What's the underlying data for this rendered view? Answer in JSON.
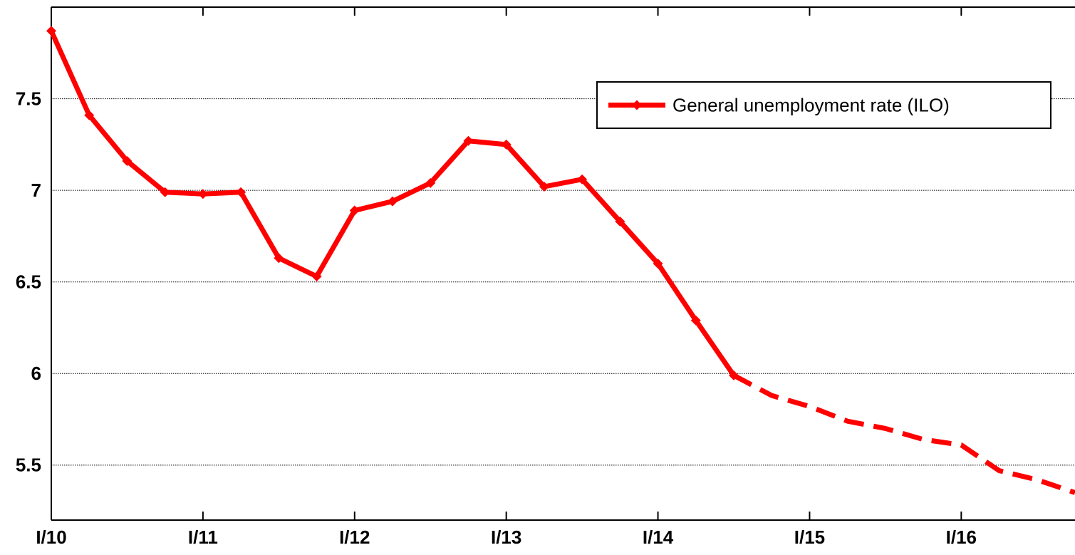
{
  "chart_data": {
    "type": "line",
    "categories": [
      "I/10",
      null,
      null,
      null,
      "I/11",
      null,
      null,
      null,
      "I/12",
      null,
      null,
      null,
      "I/13",
      null,
      null,
      null,
      "I/14",
      null,
      null,
      null,
      "I/15",
      null,
      null,
      null,
      "I/16",
      null,
      null,
      null
    ],
    "series": [
      {
        "name": "General unemployment rate (ILO)",
        "color": "#ff0000",
        "marker": "diamond",
        "dashed": false,
        "values": [
          7.87,
          7.41,
          7.16,
          6.99,
          6.98,
          6.99,
          6.63,
          6.53,
          6.89,
          6.94,
          7.04,
          7.27,
          7.25,
          7.02,
          7.06,
          6.83,
          6.6,
          6.29,
          5.99,
          null,
          null,
          null,
          null,
          null,
          null,
          null,
          null,
          null
        ]
      },
      {
        "color": "#ff0000",
        "marker": "none",
        "dashed": true,
        "values": [
          null,
          null,
          null,
          null,
          null,
          null,
          null,
          null,
          null,
          null,
          null,
          null,
          null,
          null,
          null,
          null,
          null,
          null,
          5.99,
          5.88,
          5.82,
          5.74,
          5.7,
          5.64,
          5.61,
          5.47,
          5.42,
          5.35
        ]
      }
    ],
    "ylim": [
      5.2,
      8
    ],
    "yticks": [
      5.5,
      6,
      6.5,
      7,
      7.5
    ],
    "grid": true,
    "legend": "upper right"
  }
}
